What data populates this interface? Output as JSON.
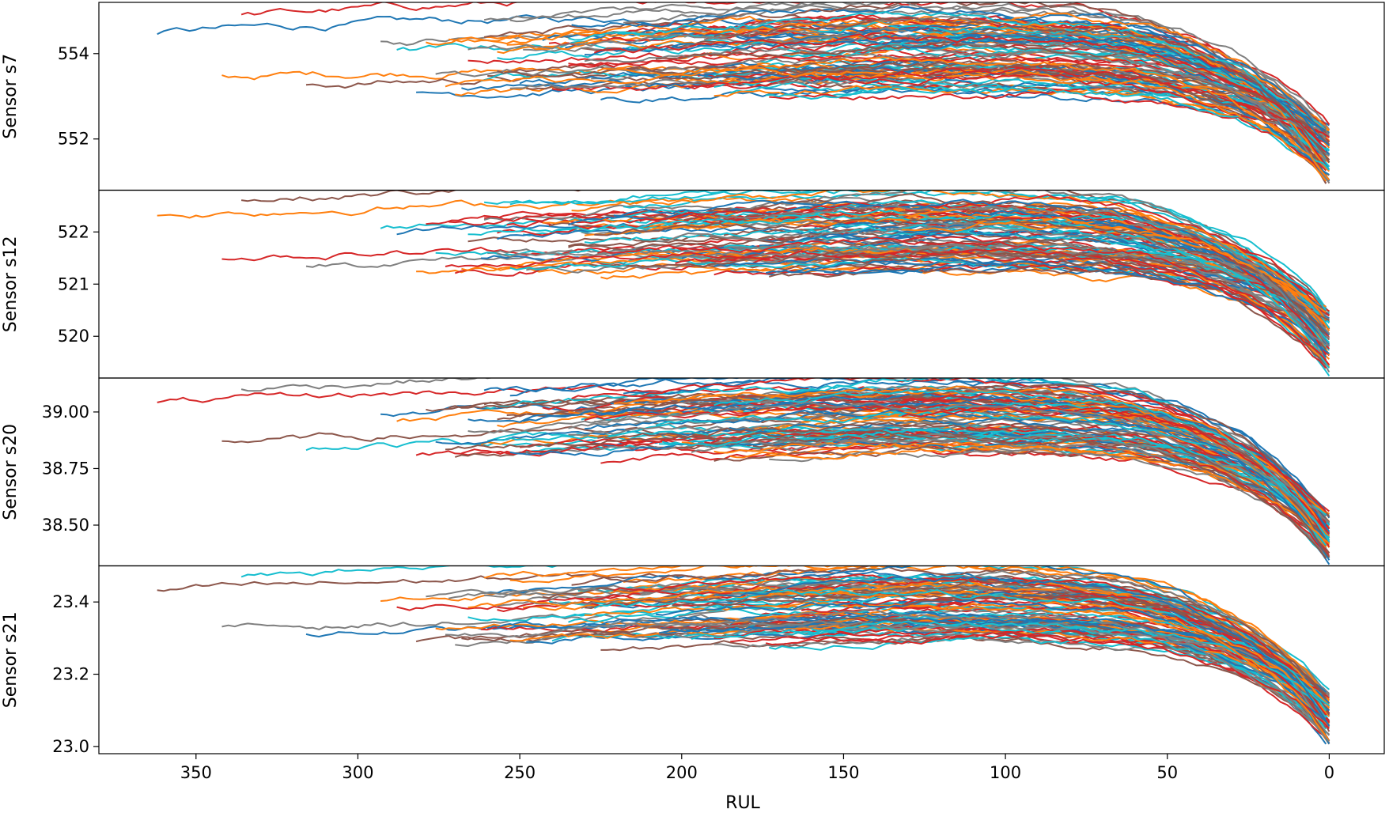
{
  "chart_data": {
    "type": "line",
    "xlabel": "RUL",
    "xlim": [
      380,
      -17
    ],
    "xticks": [
      350,
      300,
      250,
      200,
      150,
      100,
      50,
      0
    ],
    "line_colors": [
      "#1f77b4",
      "#ff7f0e",
      "#d62728",
      "#8c564b",
      "#7f7f7f",
      "#17becf"
    ],
    "series_per_panel": 100,
    "panels": [
      {
        "ylabel": "Sensor s7",
        "ylim": [
          550.8,
          555.2
        ],
        "yticks": [
          552,
          554
        ],
        "ytick_labels": [
          "552",
          "554"
        ],
        "start_range": [
          552.9,
          554.9
        ],
        "end_range": [
          550.9,
          552.3
        ],
        "noise": 0.12
      },
      {
        "ylabel": "Sensor s12",
        "ylim": [
          519.2,
          522.8
        ],
        "yticks": [
          520,
          521,
          522
        ],
        "ytick_labels": [
          "520",
          "521",
          "522"
        ],
        "start_range": [
          521.1,
          522.6
        ],
        "end_range": [
          519.3,
          520.5
        ],
        "noise": 0.09
      },
      {
        "ylabel": "Sensor s20",
        "ylim": [
          38.32,
          39.15
        ],
        "yticks": [
          38.5,
          38.75,
          39.0
        ],
        "ytick_labels": [
          "38.50",
          "38.75",
          "39.00"
        ],
        "start_range": [
          38.78,
          39.1
        ],
        "end_range": [
          38.33,
          38.55
        ],
        "noise": 0.02
      },
      {
        "ylabel": "Sensor s21",
        "ylim": [
          22.98,
          23.5
        ],
        "yticks": [
          23.0,
          23.2,
          23.4
        ],
        "ytick_labels": [
          "23.0",
          "23.2",
          "23.4"
        ],
        "start_range": [
          23.27,
          23.47
        ],
        "end_range": [
          23.0,
          23.15
        ],
        "noise": 0.012
      }
    ]
  }
}
